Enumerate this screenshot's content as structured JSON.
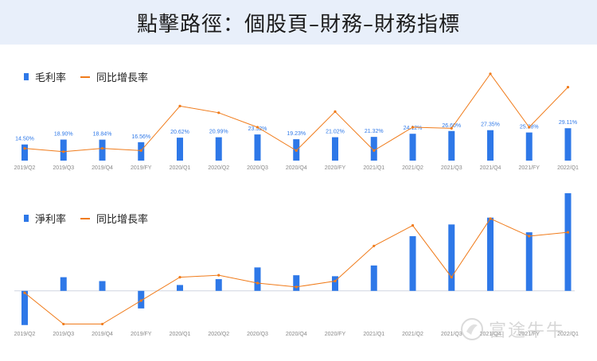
{
  "header": {
    "title": "點擊路徑：個股頁–財務–財務指標"
  },
  "watermark": {
    "text": "富途牛牛"
  },
  "chart_data": [
    {
      "type": "bar",
      "categories": [
        "2019/Q2",
        "2019/Q3",
        "2019/Q4",
        "2019/FY",
        "2020/Q1",
        "2020/Q2",
        "2020/Q3",
        "2020/Q4",
        "2020/FY",
        "2021/Q1",
        "2021/Q2",
        "2021/Q3",
        "2021/Q4",
        "2021/FY",
        "2022/Q1"
      ],
      "series": [
        {
          "name": "毛利率",
          "kind": "bar",
          "color": "#2e78e8",
          "values": [
            14.5,
            18.9,
            18.84,
            16.56,
            20.62,
            20.99,
            23.52,
            19.23,
            21.02,
            21.32,
            24.12,
            26.6,
            27.35,
            25.28,
            29.11
          ],
          "labels": [
            "14.50%",
            "18.90%",
            "18.84%",
            "16.56%",
            "20.62%",
            "20.99%",
            "23.52%",
            "19.23%",
            "21.02%",
            "21.32%",
            "24.12%",
            "26.60%",
            "27.35%",
            "25.28%",
            "29.11%"
          ]
        },
        {
          "name": "同比增長率",
          "kind": "line",
          "color": "#f07b1a",
          "values": [
            11,
            8,
            11,
            9,
            49,
            43,
            30,
            9,
            44,
            9,
            30,
            29,
            78,
            30,
            66
          ]
        }
      ],
      "ylim": [
        0,
        100
      ]
    },
    {
      "type": "bar",
      "categories": [
        "2019/Q2",
        "2019/Q3",
        "2019/Q4",
        "2019/FY",
        "2020/Q1",
        "2020/Q2",
        "2020/Q3",
        "2020/Q4",
        "2020/FY",
        "2021/Q1",
        "2021/Q2",
        "2021/Q3",
        "2021/Q4",
        "2021/FY",
        "2022/Q1"
      ],
      "series": [
        {
          "name": "淨利率",
          "kind": "bar",
          "color": "#2e78e8",
          "values": [
            -35,
            14,
            10,
            -18,
            6,
            12,
            24,
            16,
            15,
            26,
            56,
            68,
            75,
            60,
            100
          ]
        },
        {
          "name": "同比增長率",
          "kind": "line",
          "color": "#f07b1a",
          "values": [
            -2,
            -34,
            -34,
            -10,
            14,
            16,
            8,
            4,
            10,
            46,
            67,
            14,
            74,
            56,
            60
          ]
        }
      ],
      "ylim": [
        -36,
        100
      ]
    }
  ]
}
